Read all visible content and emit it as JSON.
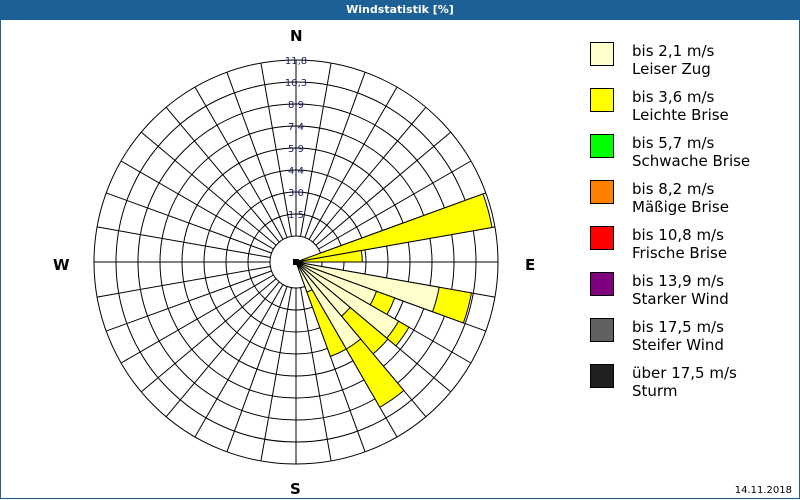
{
  "title": "Windstatistik [%]",
  "date": "14.11.2018",
  "compass": {
    "n": "N",
    "e": "E",
    "s": "S",
    "w": "W"
  },
  "legend": [
    {
      "range": "bis 2,1 m/s",
      "name": "Leiser Zug",
      "color": "#ffffcc"
    },
    {
      "range": "bis 3,6 m/s",
      "name": "Leichte Brise",
      "color": "#ffff00"
    },
    {
      "range": "bis 5,7 m/s",
      "name": "Schwache Brise",
      "color": "#00ff00"
    },
    {
      "range": "bis 8,2 m/s",
      "name": "Mäßige Brise",
      "color": "#ff8000"
    },
    {
      "range": "bis 10,8 m/s",
      "name": "Frische Brise",
      "color": "#ff0000"
    },
    {
      "range": "bis 13,9 m/s",
      "name": "Starker Wind",
      "color": "#800080"
    },
    {
      "range": "bis 17,5 m/s",
      "name": "Steifer Wind",
      "color": "#606060"
    },
    {
      "range": "über 17,5 m/s",
      "name": "Sturm",
      "color": "#202020"
    }
  ],
  "chart_data": {
    "type": "wind-rose",
    "title": "Windstatistik [%]",
    "radial_ticks": [
      "1,5",
      "3,0",
      "4,4",
      "5,9",
      "7,4",
      "8,9",
      "10,3",
      "11,8"
    ],
    "rmax": 11.8,
    "sector_width_deg": 10,
    "series_names": [
      "bis 2,1 m/s",
      "bis 3,6 m/s"
    ],
    "sectors": [
      {
        "start": 70,
        "end": 80,
        "cumulative": [
          0.0,
          11.6
        ]
      },
      {
        "start": 80,
        "end": 90,
        "cumulative": [
          0.0,
          2.7
        ]
      },
      {
        "start": 100,
        "end": 110,
        "cumulative": [
          8.0,
          10.2
        ]
      },
      {
        "start": 110,
        "end": 120,
        "cumulative": [
          4.0,
          5.3
        ]
      },
      {
        "start": 120,
        "end": 130,
        "cumulative": [
          6.2,
          7.0
        ]
      },
      {
        "start": 130,
        "end": 140,
        "cumulative": [
          3.0,
          6.3
        ]
      },
      {
        "start": 140,
        "end": 150,
        "cumulative": [
          5.0,
          9.5
        ]
      },
      {
        "start": 150,
        "end": 160,
        "cumulative": [
          0.4,
          5.0
        ]
      }
    ]
  }
}
